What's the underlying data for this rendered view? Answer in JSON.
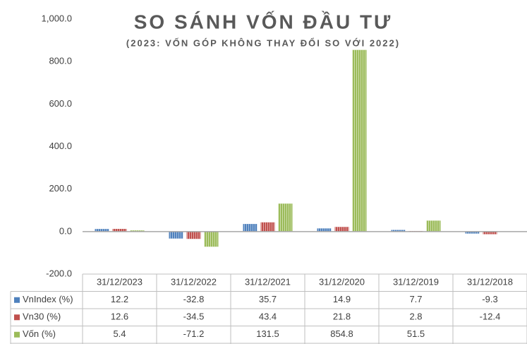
{
  "chart_data": {
    "type": "bar",
    "title": "SO SÁNH VỐN ĐẦU TƯ",
    "subtitle": "(2023: VỐN GÓP KHÔNG THAY ĐỔI SO VỚI 2022)",
    "categories": [
      "31/12/2023",
      "31/12/2022",
      "31/12/2021",
      "31/12/2020",
      "31/12/2019",
      "31/12/2018"
    ],
    "series": [
      {
        "name": "VnIndex (%)",
        "color": "#4f81bd",
        "values": [
          12.2,
          -32.8,
          35.7,
          14.9,
          7.7,
          -9.3
        ]
      },
      {
        "name": "Vn30 (%)",
        "color": "#c0504d",
        "values": [
          12.6,
          -34.5,
          43.4,
          21.8,
          2.8,
          -12.4
        ]
      },
      {
        "name": "Vốn (%)",
        "color": "#9bbb59",
        "values": [
          5.4,
          -71.2,
          131.5,
          854.8,
          51.5,
          null
        ]
      }
    ],
    "ylim": [
      -200,
      1000
    ],
    "yticks": [
      {
        "value": -200,
        "label": "-200.0"
      },
      {
        "value": 0,
        "label": "0.0"
      },
      {
        "value": 200,
        "label": "200.0"
      },
      {
        "value": 400,
        "label": "400.0"
      },
      {
        "value": 600,
        "label": "600.0"
      },
      {
        "value": 800,
        "label": "800.0"
      },
      {
        "value": 1000,
        "label": "1,000.0"
      }
    ],
    "grid": false
  }
}
